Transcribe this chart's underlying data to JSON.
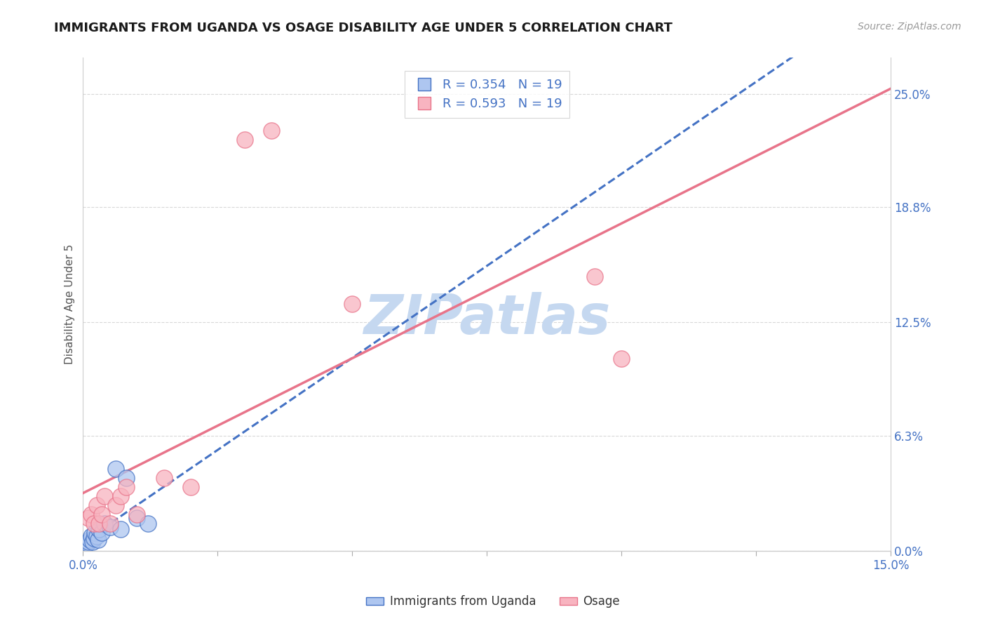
{
  "title": "IMMIGRANTS FROM UGANDA VS OSAGE DISABILITY AGE UNDER 5 CORRELATION CHART",
  "source": "Source: ZipAtlas.com",
  "ylabel": "Disability Age Under 5",
  "ytick_values": [
    0.0,
    6.3,
    12.5,
    18.8,
    25.0
  ],
  "xlim": [
    0.0,
    15.0
  ],
  "ylim": [
    0.0,
    27.0
  ],
  "blue_scatter_x": [
    0.05,
    0.08,
    0.1,
    0.12,
    0.15,
    0.18,
    0.2,
    0.22,
    0.25,
    0.28,
    0.3,
    0.35,
    0.4,
    0.5,
    0.6,
    0.7,
    0.8,
    1.0,
    1.2
  ],
  "blue_scatter_y": [
    0.3,
    0.4,
    0.5,
    0.6,
    0.8,
    0.5,
    0.7,
    1.0,
    0.8,
    0.6,
    1.2,
    1.0,
    1.5,
    1.3,
    4.5,
    1.2,
    4.0,
    1.8,
    1.5
  ],
  "pink_scatter_x": [
    0.1,
    0.15,
    0.2,
    0.25,
    0.3,
    0.35,
    0.4,
    0.5,
    0.6,
    0.7,
    0.8,
    1.0,
    1.5,
    2.0,
    3.0,
    3.5,
    5.0,
    9.5,
    10.0
  ],
  "pink_scatter_y": [
    1.8,
    2.0,
    1.5,
    2.5,
    1.5,
    2.0,
    3.0,
    1.5,
    2.5,
    3.0,
    3.5,
    2.0,
    4.0,
    3.5,
    22.5,
    23.0,
    13.5,
    15.0,
    10.5
  ],
  "blue_line_color": "#4472c4",
  "pink_line_color": "#e8748a",
  "blue_scatter_facecolor": "#aec6f0",
  "blue_scatter_edgecolor": "#4472c4",
  "pink_scatter_facecolor": "#f8b4c0",
  "pink_scatter_edgecolor": "#e8748a",
  "grid_color": "#d8d8d8",
  "watermark_text": "ZIPatlas",
  "watermark_color": "#c5d8f0",
  "title_fontsize": 13,
  "source_fontsize": 10,
  "axis_label_fontsize": 11,
  "tick_fontsize": 12,
  "legend_r_blue": "R = 0.354",
  "legend_n_blue": "N = 19",
  "legend_r_pink": "R = 0.593",
  "legend_n_pink": "N = 19"
}
